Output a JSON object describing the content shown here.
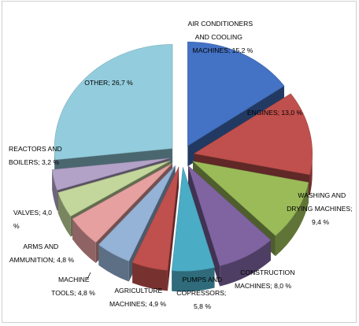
{
  "chart_data": {
    "type": "pie",
    "variant": "exploded-3d",
    "legend": "none",
    "slices": [
      {
        "label": "AIR CONDITIONERS AND COOLING MACHINES; 15,2 %",
        "name": "AIR CONDITIONERS AND COOLING MACHINES",
        "value": 15.2,
        "color": "#4472c4"
      },
      {
        "label": "ENGINES; 13,0 %",
        "name": "ENGINES",
        "value": 13.0,
        "color": "#c0504d"
      },
      {
        "label": "WASHING AND DRYING MACHINES; 9,4 %",
        "name": "WASHING AND DRYING MACHINES",
        "value": 9.4,
        "color": "#9bbb59"
      },
      {
        "label": "CONSTRUCTION MACHINES; 8,0 %",
        "name": "CONSTRUCTION MACHINES",
        "value": 8.0,
        "color": "#8064a2"
      },
      {
        "label": "PUMPS AND COPRESSORS; 5,8 %",
        "name": "PUMPS AND COPRESSORS",
        "value": 5.8,
        "color": "#4bacc6"
      },
      {
        "label": "AGRICULTURE MACHINES; 4,9 %",
        "name": "AGRICULTURE MACHINES",
        "value": 4.9,
        "color": "#c0504d"
      },
      {
        "label": "MACHINE TOOLS; 4,8 %",
        "name": "MACHINE TOOLS",
        "value": 4.8,
        "color": "#95b3d7"
      },
      {
        "label": "ARMS AND AMMUNITION; 4,8 %",
        "name": "ARMS AND AMMUNITION",
        "value": 4.8,
        "color": "#e6a0a0"
      },
      {
        "label": "VALVES; 4,0 %",
        "name": "VALVES",
        "value": 4.0,
        "color": "#c3d69b"
      },
      {
        "label": "REACTORS AND BOILERS; 3,2 %",
        "name": "REACTORS AND BOILERS",
        "value": 3.2,
        "color": "#b2a2c7"
      },
      {
        "label": "OTHER; 26,7 %",
        "name": "OTHER",
        "value": 26.7,
        "color": "#93cddd"
      }
    ]
  }
}
